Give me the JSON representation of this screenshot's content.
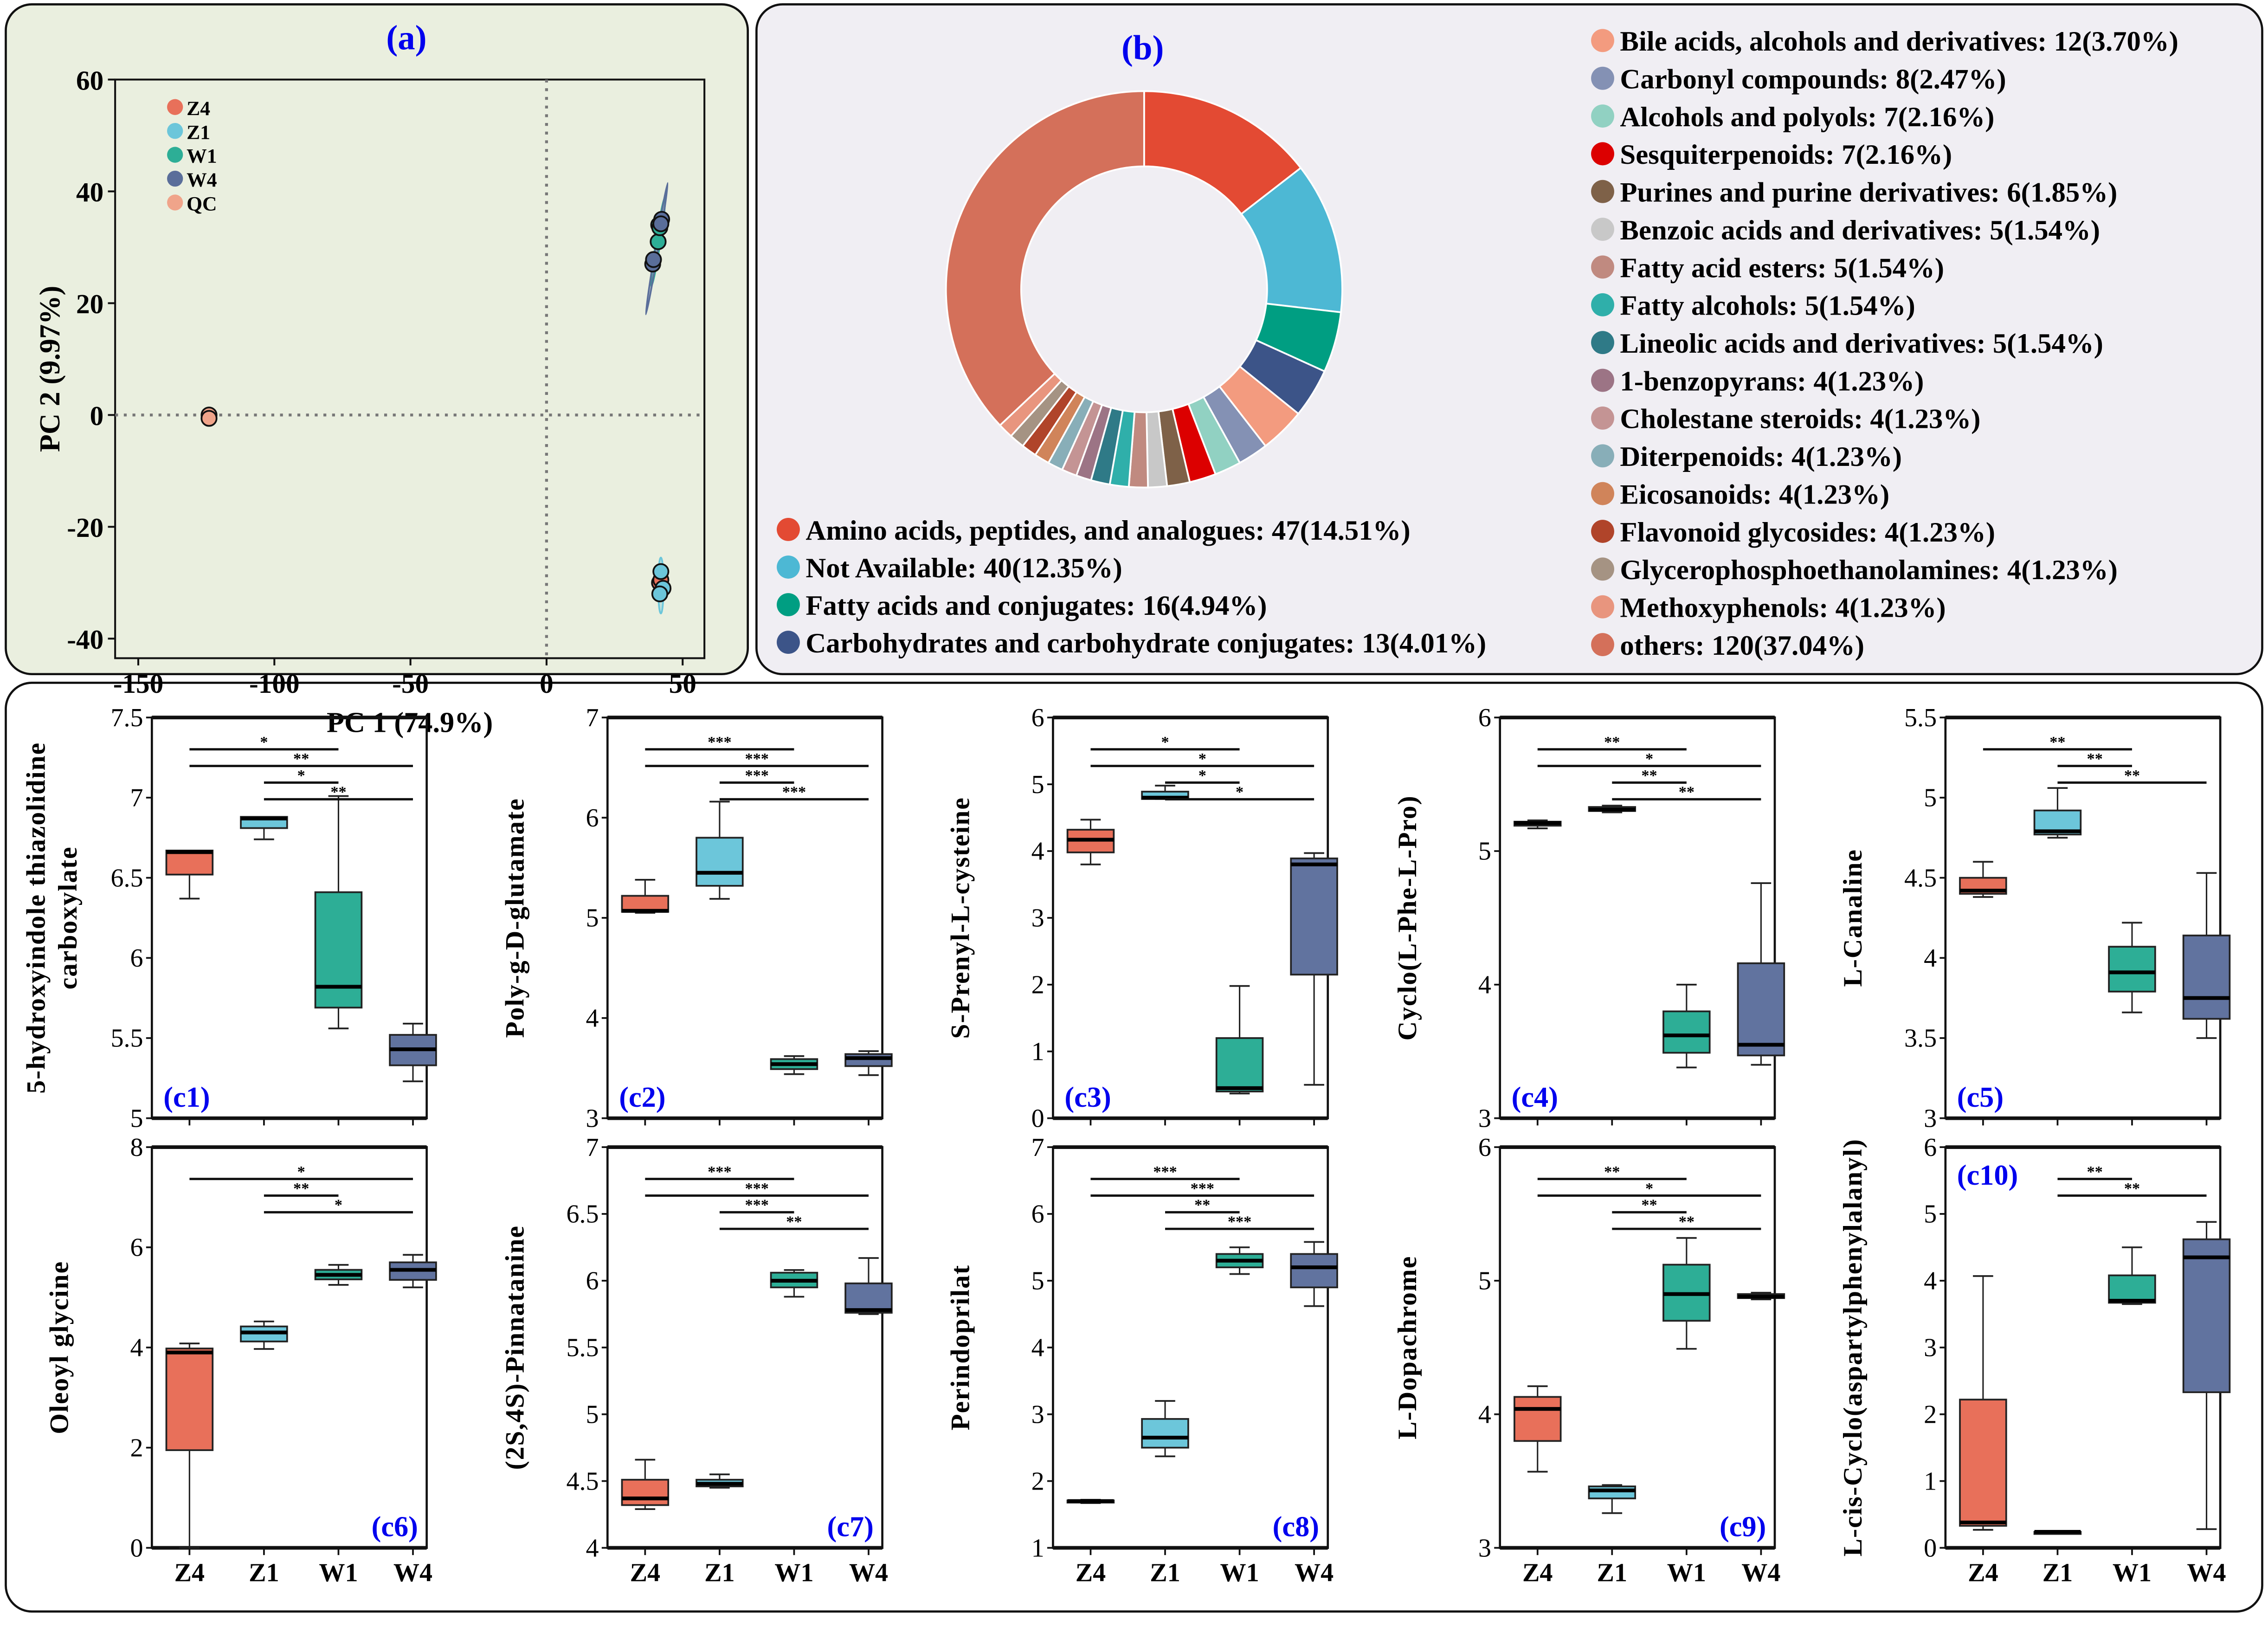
{
  "chart_data": [
    {
      "id": "a",
      "type": "scatter",
      "panel_label": "(a)",
      "xlabel": "PC 1 (74.9%)",
      "ylabel": "PC 2 (9.97%)",
      "xlim": [
        -158.5,
        58
      ],
      "ylim": [
        -43.5,
        60
      ],
      "xticks": [
        -150,
        -100,
        -50,
        0,
        50
      ],
      "yticks": [
        -40,
        -20,
        0,
        20,
        40,
        60
      ],
      "reference_lines": {
        "x": 0,
        "y": 0,
        "style": "dotted"
      },
      "legend_position": "top-left",
      "series": [
        {
          "name": "Z4",
          "color": "#E8705A",
          "points": [
            [
              41.5,
              -30
            ],
            [
              42,
              -29.5
            ]
          ],
          "ellipse": {
            "axis": [
              [
                42,
                -31.5
              ],
              [
                42,
                -28
              ]
            ],
            "half_width": 0.6
          }
        },
        {
          "name": "Z1",
          "color": "#6CC6DA",
          "points": [
            [
              42,
              -28
            ],
            [
              42.8,
              -31
            ],
            [
              41.6,
              -32
            ]
          ],
          "ellipse": {
            "axis": [
              [
                42,
                -35.5
              ],
              [
                42,
                -25.5
              ]
            ],
            "half_width": 1.0
          }
        },
        {
          "name": "W1",
          "color": "#2DAE96",
          "points": [
            [
              41.2,
              34
            ],
            [
              41,
              31
            ],
            [
              41.6,
              33.5
            ]
          ],
          "ellipse": {
            "axis": [
              [
                38.5,
                23
              ],
              [
                43.5,
                39
              ]
            ],
            "half_width": 0.8
          }
        },
        {
          "name": "W4",
          "color": "#5A6E9A",
          "points": [
            [
              42.3,
              35
            ],
            [
              39,
              27
            ],
            [
              39.3,
              27.8
            ],
            [
              42,
              34.2
            ]
          ],
          "ellipse": {
            "axis": [
              [
                36.5,
                18
              ],
              [
                44.5,
                41.5
              ]
            ],
            "half_width": 0.35
          }
        },
        {
          "name": "QC",
          "color": "#F0A48A",
          "points": [
            [
              -124,
              0
            ],
            [
              -124,
              -0.6
            ]
          ]
        }
      ]
    },
    {
      "id": "b",
      "type": "pie",
      "donut": true,
      "panel_label": "(b)",
      "slices": [
        {
          "label": "Amino acids, peptides, and analogues: 47(14.51%)",
          "value": 47,
          "color": "#E34A33"
        },
        {
          "label": "Not Available: 40(12.35%)",
          "value": 40,
          "color": "#4DB8D4"
        },
        {
          "label": "Fatty acids and conjugates: 16(4.94%)",
          "value": 16,
          "color": "#009E82"
        },
        {
          "label": "Carbohydrates and carbohydrate conjugates: 13(4.01%)",
          "value": 13,
          "color": "#3C5488"
        },
        {
          "label": "Bile acids, alcohols and derivatives: 12(3.70%)",
          "value": 12,
          "color": "#F39B7F"
        },
        {
          "label": "Carbonyl compounds: 8(2.47%)",
          "value": 8,
          "color": "#8491B4"
        },
        {
          "label": "Alcohols and polyols: 7(2.16%)",
          "value": 7,
          "color": "#91D1C2"
        },
        {
          "label": "Sesquiterpenoids: 7(2.16%)",
          "value": 7,
          "color": "#DC0000"
        },
        {
          "label": "Purines and purine derivatives: 6(1.85%)",
          "value": 6,
          "color": "#7E6148"
        },
        {
          "label": "Benzoic acids and derivatives: 5(1.54%)",
          "value": 5,
          "color": "#C8C8C8"
        },
        {
          "label": "Fatty acid esters: 5(1.54%)",
          "value": 5,
          "color": "#C08A80"
        },
        {
          "label": "Fatty alcohols: 5(1.54%)",
          "value": 5,
          "color": "#2FAFAA"
        },
        {
          "label": "Lineolic acids and derivatives: 5(1.54%)",
          "value": 5,
          "color": "#2F7A87"
        },
        {
          "label": "1-benzopyrans: 4(1.23%)",
          "value": 4,
          "color": "#9C7485"
        },
        {
          "label": "Cholestane steroids: 4(1.23%)",
          "value": 4,
          "color": "#C49494"
        },
        {
          "label": "Diterpenoids: 4(1.23%)",
          "value": 4,
          "color": "#88AEB8"
        },
        {
          "label": "Eicosanoids: 4(1.23%)",
          "value": 4,
          "color": "#D0845A"
        },
        {
          "label": "Flavonoid glycosides: 4(1.23%)",
          "value": 4,
          "color": "#B0442A"
        },
        {
          "label": "Glycerophosphoethanolamines: 4(1.23%)",
          "value": 4,
          "color": "#A59383"
        },
        {
          "label": "Methoxyphenols: 4(1.23%)",
          "value": 4,
          "color": "#E8957E"
        },
        {
          "label": "others: 120(37.04%)",
          "value": 120,
          "color": "#D4705A"
        }
      ]
    },
    {
      "id": "c1",
      "type": "box",
      "panel_label": "(c1)",
      "label_position": "bottom-left",
      "ylabel": [
        "5-hydroxyindole thiazolidine",
        "carboxylate"
      ],
      "ylim": [
        5,
        7.5
      ],
      "yticks": [
        "5",
        "5.5",
        "6",
        "6.5",
        "7",
        "7.5"
      ],
      "categories": [
        "Z4",
        "Z1",
        "W1",
        "W4"
      ],
      "boxes": [
        [
          6.37,
          6.52,
          6.66,
          6.67,
          6.67
        ],
        [
          6.74,
          6.81,
          6.87,
          6.88,
          6.88
        ],
        [
          5.56,
          5.69,
          5.82,
          6.41,
          7.01
        ],
        [
          5.23,
          5.33,
          5.43,
          5.52,
          5.59
        ]
      ],
      "significance": [
        {
          "from": "Z4",
          "to": "W1",
          "label": "*"
        },
        {
          "from": "Z4",
          "to": "W4",
          "label": "**"
        },
        {
          "from": "Z1",
          "to": "W1",
          "label": "*"
        },
        {
          "from": "Z1",
          "to": "W4",
          "label": "**"
        }
      ]
    },
    {
      "id": "c2",
      "type": "box",
      "panel_label": "(c2)",
      "label_position": "bottom-left",
      "ylabel": [
        "Poly-g-D-glutamate"
      ],
      "ylim": [
        3,
        7
      ],
      "yticks": [
        "3",
        "4",
        "5",
        "6",
        "7"
      ],
      "categories": [
        "Z4",
        "Z1",
        "W1",
        "W4"
      ],
      "boxes": [
        [
          5.05,
          5.06,
          5.07,
          5.22,
          5.38
        ],
        [
          5.19,
          5.32,
          5.45,
          5.8,
          6.16
        ],
        [
          3.44,
          3.49,
          3.54,
          3.59,
          3.62
        ],
        [
          3.43,
          3.52,
          3.6,
          3.64,
          3.67
        ]
      ],
      "significance": [
        {
          "from": "Z4",
          "to": "W1",
          "label": "***"
        },
        {
          "from": "Z4",
          "to": "W4",
          "label": "***"
        },
        {
          "from": "Z1",
          "to": "W1",
          "label": "***"
        },
        {
          "from": "Z1",
          "to": "W4",
          "label": "***"
        }
      ]
    },
    {
      "id": "c3",
      "type": "box",
      "panel_label": "(c3)",
      "label_position": "bottom-left",
      "ylabel": [
        "S-Prenyl-L-cysteine"
      ],
      "ylim": [
        0,
        6
      ],
      "yticks": [
        "0",
        "1",
        "2",
        "3",
        "4",
        "5",
        "6"
      ],
      "categories": [
        "Z4",
        "Z1",
        "W1",
        "W4"
      ],
      "boxes": [
        [
          3.8,
          3.98,
          4.17,
          4.32,
          4.47
        ],
        [
          4.78,
          4.78,
          4.8,
          4.89,
          4.98
        ],
        [
          0.37,
          0.4,
          0.45,
          1.2,
          1.98
        ],
        [
          0.5,
          2.15,
          3.8,
          3.89,
          3.97
        ]
      ],
      "significance": [
        {
          "from": "Z4",
          "to": "W1",
          "label": "*"
        },
        {
          "from": "Z4",
          "to": "W4",
          "label": "*"
        },
        {
          "from": "Z1",
          "to": "W1",
          "label": "*"
        },
        {
          "from": "Z1",
          "to": "W4",
          "label": "*"
        }
      ]
    },
    {
      "id": "c4",
      "type": "box",
      "panel_label": "(c4)",
      "label_position": "bottom-left",
      "ylabel": [
        "Cyclo(L-Phe-L-Pro)"
      ],
      "ylim": [
        3,
        6
      ],
      "yticks": [
        "3",
        "4",
        "5",
        "6"
      ],
      "categories": [
        "Z4",
        "Z1",
        "W1",
        "W4"
      ],
      "boxes": [
        [
          5.17,
          5.19,
          5.21,
          5.22,
          5.23
        ],
        [
          5.29,
          5.3,
          5.31,
          5.33,
          5.34
        ],
        [
          3.38,
          3.49,
          3.62,
          3.8,
          4.0
        ],
        [
          3.4,
          3.47,
          3.55,
          4.16,
          4.76
        ]
      ],
      "significance": [
        {
          "from": "Z4",
          "to": "W1",
          "label": "**"
        },
        {
          "from": "Z4",
          "to": "W4",
          "label": "*"
        },
        {
          "from": "Z1",
          "to": "W1",
          "label": "**"
        },
        {
          "from": "Z1",
          "to": "W4",
          "label": "**"
        }
      ]
    },
    {
      "id": "c5",
      "type": "box",
      "panel_label": "(c5)",
      "label_position": "bottom-left",
      "ylabel": [
        "L-Canaline"
      ],
      "ylim": [
        3,
        5.5
      ],
      "yticks": [
        "3",
        "3.5",
        "4",
        "4.5",
        "5",
        "5.5"
      ],
      "categories": [
        "Z4",
        "Z1",
        "W1",
        "W4"
      ],
      "boxes": [
        [
          4.38,
          4.4,
          4.42,
          4.5,
          4.6
        ],
        [
          4.75,
          4.77,
          4.79,
          4.92,
          5.06
        ],
        [
          3.66,
          3.79,
          3.91,
          4.07,
          4.22
        ],
        [
          3.5,
          3.62,
          3.75,
          4.14,
          4.53
        ]
      ],
      "significance": [
        {
          "from": "Z4",
          "to": "W1",
          "label": "**"
        },
        {
          "from": "Z1",
          "to": "W1",
          "label": "**"
        },
        {
          "from": "Z1",
          "to": "W4",
          "label": "**"
        }
      ]
    },
    {
      "id": "c6",
      "type": "box",
      "panel_label": "(c6)",
      "label_position": "bottom-right",
      "ylabel": [
        "Oleoyl glycine"
      ],
      "ylim": [
        0,
        8
      ],
      "yticks": [
        "0",
        "2",
        "4",
        "6",
        "8"
      ],
      "categories": [
        "Z4",
        "Z1",
        "W1",
        "W4"
      ],
      "boxes": [
        [
          0.0,
          1.95,
          3.9,
          3.98,
          4.08
        ],
        [
          3.97,
          4.12,
          4.3,
          4.42,
          4.52
        ],
        [
          5.25,
          5.36,
          5.45,
          5.55,
          5.65
        ],
        [
          5.2,
          5.35,
          5.55,
          5.7,
          5.85
        ]
      ],
      "significance": [
        {
          "from": "Z4",
          "to": "W4",
          "label": "*"
        },
        {
          "from": "Z1",
          "to": "W1",
          "label": "**"
        },
        {
          "from": "Z1",
          "to": "W4",
          "label": "*"
        }
      ]
    },
    {
      "id": "c7",
      "type": "box",
      "panel_label": "(c7)",
      "label_position": "bottom-right",
      "ylabel": [
        "(2S,4S)-Pinnatanine"
      ],
      "ylim": [
        4,
        7
      ],
      "yticks": [
        "4",
        "4.5",
        "5",
        "5.5",
        "6",
        "6.5",
        "7"
      ],
      "categories": [
        "Z4",
        "Z1",
        "W1",
        "W4"
      ],
      "boxes": [
        [
          4.29,
          4.32,
          4.37,
          4.51,
          4.66
        ],
        [
          4.45,
          4.46,
          4.48,
          4.51,
          4.55
        ],
        [
          5.88,
          5.95,
          6.0,
          6.06,
          6.08
        ],
        [
          5.75,
          5.76,
          5.78,
          5.98,
          6.17
        ]
      ],
      "significance": [
        {
          "from": "Z4",
          "to": "W1",
          "label": "***"
        },
        {
          "from": "Z4",
          "to": "W4",
          "label": "***"
        },
        {
          "from": "Z1",
          "to": "W1",
          "label": "***"
        },
        {
          "from": "Z1",
          "to": "W4",
          "label": "**"
        }
      ]
    },
    {
      "id": "c8",
      "type": "box",
      "panel_label": "(c8)",
      "label_position": "bottom-right",
      "ylabel": [
        "Perindoprilat"
      ],
      "ylim": [
        1,
        7
      ],
      "yticks": [
        "1",
        "2",
        "3",
        "4",
        "5",
        "6",
        "7"
      ],
      "categories": [
        "Z4",
        "Z1",
        "W1",
        "W4"
      ],
      "boxes": [
        [
          1.67,
          1.68,
          1.7,
          1.71,
          1.72
        ],
        [
          2.37,
          2.5,
          2.65,
          2.93,
          3.2
        ],
        [
          5.1,
          5.2,
          5.3,
          5.4,
          5.5
        ],
        [
          4.62,
          4.9,
          5.2,
          5.4,
          5.58
        ]
      ],
      "significance": [
        {
          "from": "Z4",
          "to": "W1",
          "label": "***"
        },
        {
          "from": "Z4",
          "to": "W4",
          "label": "***"
        },
        {
          "from": "Z1",
          "to": "W1",
          "label": "**"
        },
        {
          "from": "Z1",
          "to": "W4",
          "label": "***"
        }
      ]
    },
    {
      "id": "c9",
      "type": "box",
      "panel_label": "(c9)",
      "label_position": "bottom-right",
      "ylabel": [
        "L-Dopachrome"
      ],
      "ylim": [
        3,
        6
      ],
      "yticks": [
        "3",
        "4",
        "5",
        "6"
      ],
      "categories": [
        "Z4",
        "Z1",
        "W1",
        "W4"
      ],
      "boxes": [
        [
          3.57,
          3.8,
          4.04,
          4.13,
          4.21
        ],
        [
          3.26,
          3.37,
          3.43,
          3.46,
          3.47
        ],
        [
          4.49,
          4.7,
          4.9,
          5.12,
          5.32
        ],
        [
          4.86,
          4.87,
          4.88,
          4.9,
          4.91
        ]
      ],
      "significance": [
        {
          "from": "Z4",
          "to": "W1",
          "label": "**"
        },
        {
          "from": "Z4",
          "to": "W4",
          "label": "*"
        },
        {
          "from": "Z1",
          "to": "W1",
          "label": "**"
        },
        {
          "from": "Z1",
          "to": "W4",
          "label": "**"
        }
      ]
    },
    {
      "id": "c10",
      "type": "box",
      "panel_label": "(c10)",
      "label_position": "top-left",
      "ylabel": [
        "L-cis-Cyclo(aspartylphenylalanyl)"
      ],
      "ylim": [
        0,
        6
      ],
      "yticks": [
        "0",
        "1",
        "2",
        "3",
        "4",
        "5",
        "6"
      ],
      "categories": [
        "Z4",
        "Z1",
        "W1",
        "W4"
      ],
      "boxes": [
        [
          0.27,
          0.33,
          0.38,
          2.22,
          4.07
        ],
        [
          0.23,
          0.23,
          0.24,
          0.24,
          0.25
        ],
        [
          3.65,
          3.67,
          3.7,
          4.08,
          4.5
        ],
        [
          0.28,
          2.33,
          4.35,
          4.62,
          4.88
        ]
      ],
      "significance": [
        {
          "from": "Z1",
          "to": "W1",
          "label": "**"
        },
        {
          "from": "Z1",
          "to": "W4",
          "label": "**"
        }
      ]
    }
  ],
  "colors": {
    "group_box": [
      "#E8705A",
      "#6CC6DA",
      "#2DAE96",
      "#61739F"
    ],
    "panel_label": "#0000EE",
    "panel_a_bg": "#EAEFDF",
    "panel_b_bg": "#F0EEF3"
  }
}
